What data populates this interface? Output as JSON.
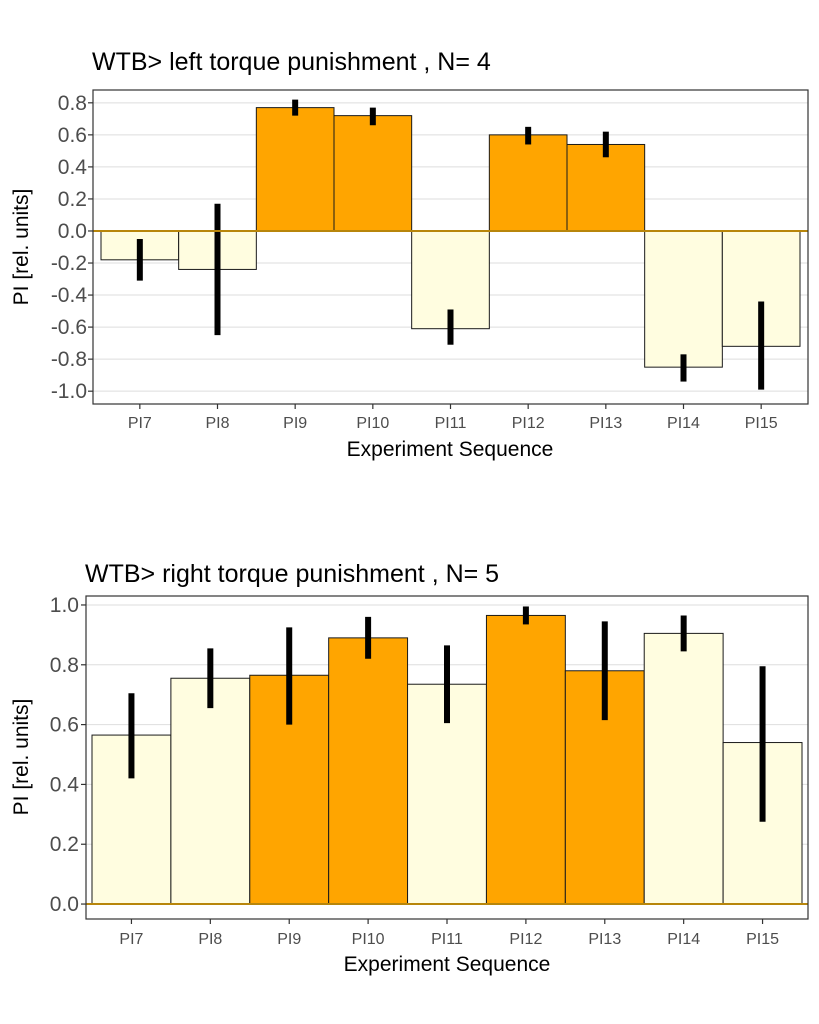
{
  "colors": {
    "highlight": "#FFA500",
    "normal": "#FFFDE0",
    "zero_line": "#B8860B"
  },
  "chart_data": [
    {
      "type": "bar",
      "title": "WTB> left torque punishment , N= 4",
      "xlabel": "Experiment Sequence",
      "ylabel": "PI [rel. units]",
      "ylim": [
        -1.08,
        0.88
      ],
      "yticks": [
        -1.0,
        -0.8,
        -0.6,
        -0.4,
        -0.2,
        0.0,
        0.2,
        0.4,
        0.6,
        0.8
      ],
      "ytick_labels": [
        "-1.0",
        "-0.8",
        "-0.6",
        "-0.4",
        "-0.2",
        "0.0",
        "0.2",
        "0.4",
        "0.6",
        "0.8"
      ],
      "grid": true,
      "categories": [
        "PI7",
        "PI8",
        "PI9",
        "PI10",
        "PI11",
        "PI12",
        "PI13",
        "PI14",
        "PI15"
      ],
      "values": [
        -0.18,
        -0.24,
        0.77,
        0.72,
        -0.61,
        0.6,
        0.54,
        -0.85,
        -0.72
      ],
      "error_low": [
        -0.31,
        -0.65,
        0.72,
        0.66,
        -0.71,
        0.54,
        0.46,
        -0.94,
        -0.99
      ],
      "error_high": [
        -0.05,
        0.17,
        0.82,
        0.77,
        -0.49,
        0.65,
        0.62,
        -0.77,
        -0.44
      ],
      "highlighted": [
        false,
        false,
        true,
        true,
        false,
        true,
        true,
        false,
        false
      ]
    },
    {
      "type": "bar",
      "title": "WTB> right torque punishment , N= 5",
      "xlabel": "Experiment Sequence",
      "ylabel": "PI [rel. units]",
      "ylim": [
        -0.05,
        1.03
      ],
      "yticks": [
        0.0,
        0.2,
        0.4,
        0.6,
        0.8,
        1.0
      ],
      "ytick_labels": [
        "0.0",
        "0.2",
        "0.4",
        "0.6",
        "0.8",
        "1.0"
      ],
      "grid": true,
      "categories": [
        "PI7",
        "PI8",
        "PI9",
        "PI10",
        "PI11",
        "PI12",
        "PI13",
        "PI14",
        "PI15"
      ],
      "values": [
        0.565,
        0.755,
        0.765,
        0.89,
        0.735,
        0.965,
        0.78,
        0.905,
        0.54
      ],
      "error_low": [
        0.42,
        0.655,
        0.6,
        0.82,
        0.605,
        0.935,
        0.615,
        0.845,
        0.275
      ],
      "error_high": [
        0.705,
        0.855,
        0.925,
        0.96,
        0.865,
        0.995,
        0.945,
        0.965,
        0.795
      ],
      "highlighted": [
        false,
        false,
        true,
        true,
        false,
        true,
        true,
        false,
        false
      ]
    }
  ]
}
